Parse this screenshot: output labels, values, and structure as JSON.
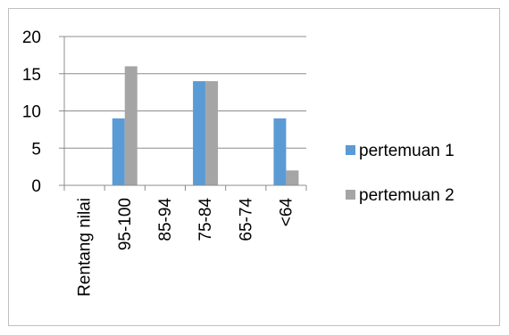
{
  "chart_data": {
    "type": "bar",
    "categories": [
      "Rentang nilai",
      "95-100",
      "85-94",
      "75-84",
      "65-74",
      "<64"
    ],
    "series": [
      {
        "name": "pertemuan 1",
        "color": "#5b9bd5",
        "values": [
          0,
          9,
          0,
          14,
          0,
          9
        ]
      },
      {
        "name": "pertemuan 2",
        "color": "#a5a5a5",
        "values": [
          0,
          16,
          0,
          14,
          0,
          2
        ]
      }
    ],
    "yticks": [
      0,
      5,
      10,
      15,
      20
    ],
    "ylim": [
      0,
      20
    ],
    "grid": true,
    "legend_position": "right",
    "title": "",
    "xlabel": "",
    "ylabel": ""
  }
}
